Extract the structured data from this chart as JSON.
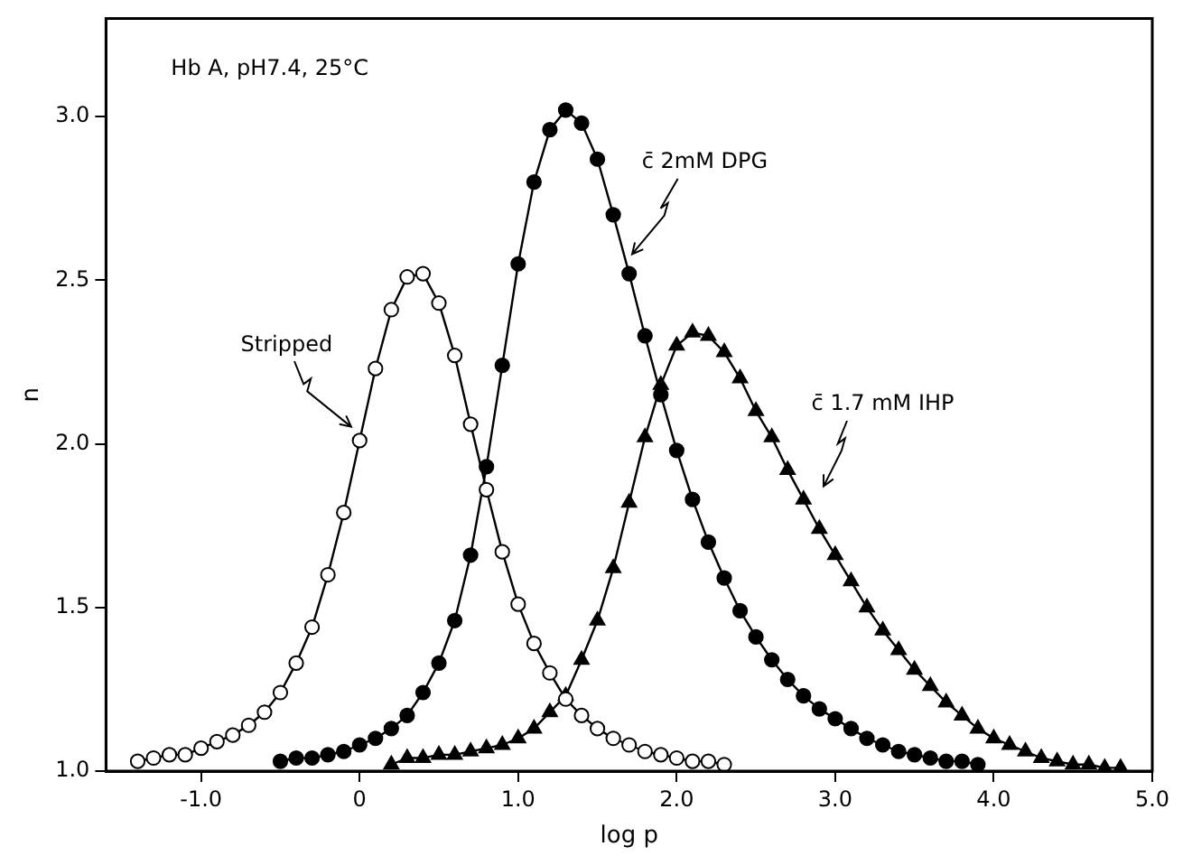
{
  "chart_data": {
    "type": "line",
    "title": "Hb A, pH7.4, 25°C",
    "xlabel": "log p",
    "ylabel": "n",
    "xlim": [
      -1.6,
      5.0
    ],
    "ylim": [
      1.0,
      3.3
    ],
    "xticks": [
      {
        "value": -1,
        "label": "-1.0"
      },
      0,
      {
        "value": 1,
        "label": "1.0"
      },
      {
        "value": 2,
        "label": "2.0"
      },
      {
        "value": 3,
        "label": "3.0"
      },
      {
        "value": 4,
        "label": "4.0"
      },
      {
        "value": 5,
        "label": "5.0"
      }
    ],
    "yticks": [
      {
        "value": 1,
        "label": "1.0"
      },
      {
        "value": 1.5,
        "label": "1.5"
      },
      {
        "value": 2,
        "label": "2.0"
      },
      {
        "value": 2.5,
        "label": "2.5"
      },
      {
        "value": 3,
        "label": "3.0"
      }
    ],
    "grid": false,
    "legend": false,
    "series": [
      {
        "name": "Stripped",
        "color": "#000000",
        "marker": "circle",
        "colors": [
          "#ffffff",
          "#ffffff",
          "#ffffff",
          "#ffffff",
          "#ffffff",
          "#ffffff",
          "#ffffff",
          "#ffffff",
          "#ffffff",
          "#ffffff",
          "#ffffff",
          "#ffffff",
          "#ffffff",
          "#ffffff",
          "#ffffff",
          "#ffffff",
          "#ffffff",
          "#ffffff",
          "#ffffff",
          "#ffffff",
          "#ffffff",
          "#ffffff",
          "#ffffff",
          "#ffffff",
          "#ffffff",
          "#ffffff",
          "#ffffff",
          "#ffffff",
          "#ffffff",
          "#ffffff",
          "#ffffff",
          "#ffffff",
          "#ffffff",
          "#ffffff",
          "#ffffff",
          "#ffffff",
          "#ffffff",
          "#ffffff"
        ],
        "x": [
          -1.4,
          -1.3,
          -1.2,
          -1.1,
          -1.0,
          -0.9,
          -0.8,
          -0.7,
          -0.6,
          -0.5,
          -0.4,
          -0.3,
          -0.2,
          -0.1,
          0.0,
          0.1,
          0.2,
          0.3,
          0.4,
          0.5,
          0.6,
          0.7,
          0.8,
          0.9,
          1.0,
          1.1,
          1.2,
          1.3,
          1.4,
          1.5,
          1.6,
          1.7,
          1.8,
          1.9,
          2.0,
          2.1,
          2.2,
          2.3
        ],
        "values": [
          1.03,
          1.04,
          1.05,
          1.05,
          1.07,
          1.09,
          1.11,
          1.14,
          1.18,
          1.24,
          1.33,
          1.44,
          1.6,
          1.79,
          2.01,
          2.23,
          2.41,
          2.51,
          2.52,
          2.43,
          2.27,
          2.06,
          1.86,
          1.67,
          1.51,
          1.39,
          1.3,
          1.22,
          1.17,
          1.13,
          1.1,
          1.08,
          1.06,
          1.05,
          1.04,
          1.03,
          1.03,
          1.02
        ]
      },
      {
        "name": "c̄ 2mM DPG",
        "color": "#000000",
        "marker": "circle",
        "x": [
          -0.5,
          -0.4,
          -0.3,
          -0.2,
          -0.1,
          0.0,
          0.1,
          0.2,
          0.3,
          0.4,
          0.5,
          0.6,
          0.7,
          0.8,
          0.9,
          1.0,
          1.1,
          1.2,
          1.3,
          1.4,
          1.5,
          1.6,
          1.7,
          1.8,
          1.9,
          2.0,
          2.1,
          2.2,
          2.3,
          2.4,
          2.5,
          2.6,
          2.7,
          2.8,
          2.9,
          3.0,
          3.1,
          3.2,
          3.3,
          3.4,
          3.5,
          3.6,
          3.7,
          3.8,
          3.9
        ],
        "values": [
          1.03,
          1.04,
          1.04,
          1.05,
          1.06,
          1.08,
          1.1,
          1.13,
          1.17,
          1.24,
          1.33,
          1.46,
          1.66,
          1.93,
          2.24,
          2.55,
          2.8,
          2.96,
          3.02,
          2.98,
          2.87,
          2.7,
          2.52,
          2.33,
          2.15,
          1.98,
          1.83,
          1.7,
          1.59,
          1.49,
          1.41,
          1.34,
          1.28,
          1.23,
          1.19,
          1.16,
          1.13,
          1.1,
          1.08,
          1.06,
          1.05,
          1.04,
          1.03,
          1.03,
          1.02
        ]
      },
      {
        "name": "c̄ 1.7 mM IHP",
        "color": "#000000",
        "marker": "triangle",
        "x": [
          0.2,
          0.3,
          0.4,
          0.5,
          0.6,
          0.7,
          0.8,
          0.9,
          1.0,
          1.1,
          1.2,
          1.3,
          1.4,
          1.5,
          1.6,
          1.7,
          1.8,
          1.9,
          2.0,
          2.1,
          2.2,
          2.3,
          2.4,
          2.5,
          2.6,
          2.7,
          2.8,
          2.9,
          3.0,
          3.1,
          3.2,
          3.3,
          3.4,
          3.5,
          3.6,
          3.7,
          3.8,
          3.9,
          4.0,
          4.1,
          4.2,
          4.3,
          4.4,
          4.5,
          4.6,
          4.7,
          4.8
        ],
        "values": [
          1.02,
          1.04,
          1.04,
          1.05,
          1.05,
          1.06,
          1.07,
          1.08,
          1.1,
          1.13,
          1.18,
          1.23,
          1.34,
          1.46,
          1.62,
          1.82,
          2.02,
          2.18,
          2.3,
          2.34,
          2.33,
          2.28,
          2.2,
          2.1,
          2.02,
          1.92,
          1.83,
          1.74,
          1.66,
          1.58,
          1.5,
          1.43,
          1.37,
          1.31,
          1.26,
          1.21,
          1.17,
          1.13,
          1.1,
          1.08,
          1.06,
          1.04,
          1.03,
          1.02,
          1.02,
          1.01,
          1.01
        ]
      }
    ]
  }
}
